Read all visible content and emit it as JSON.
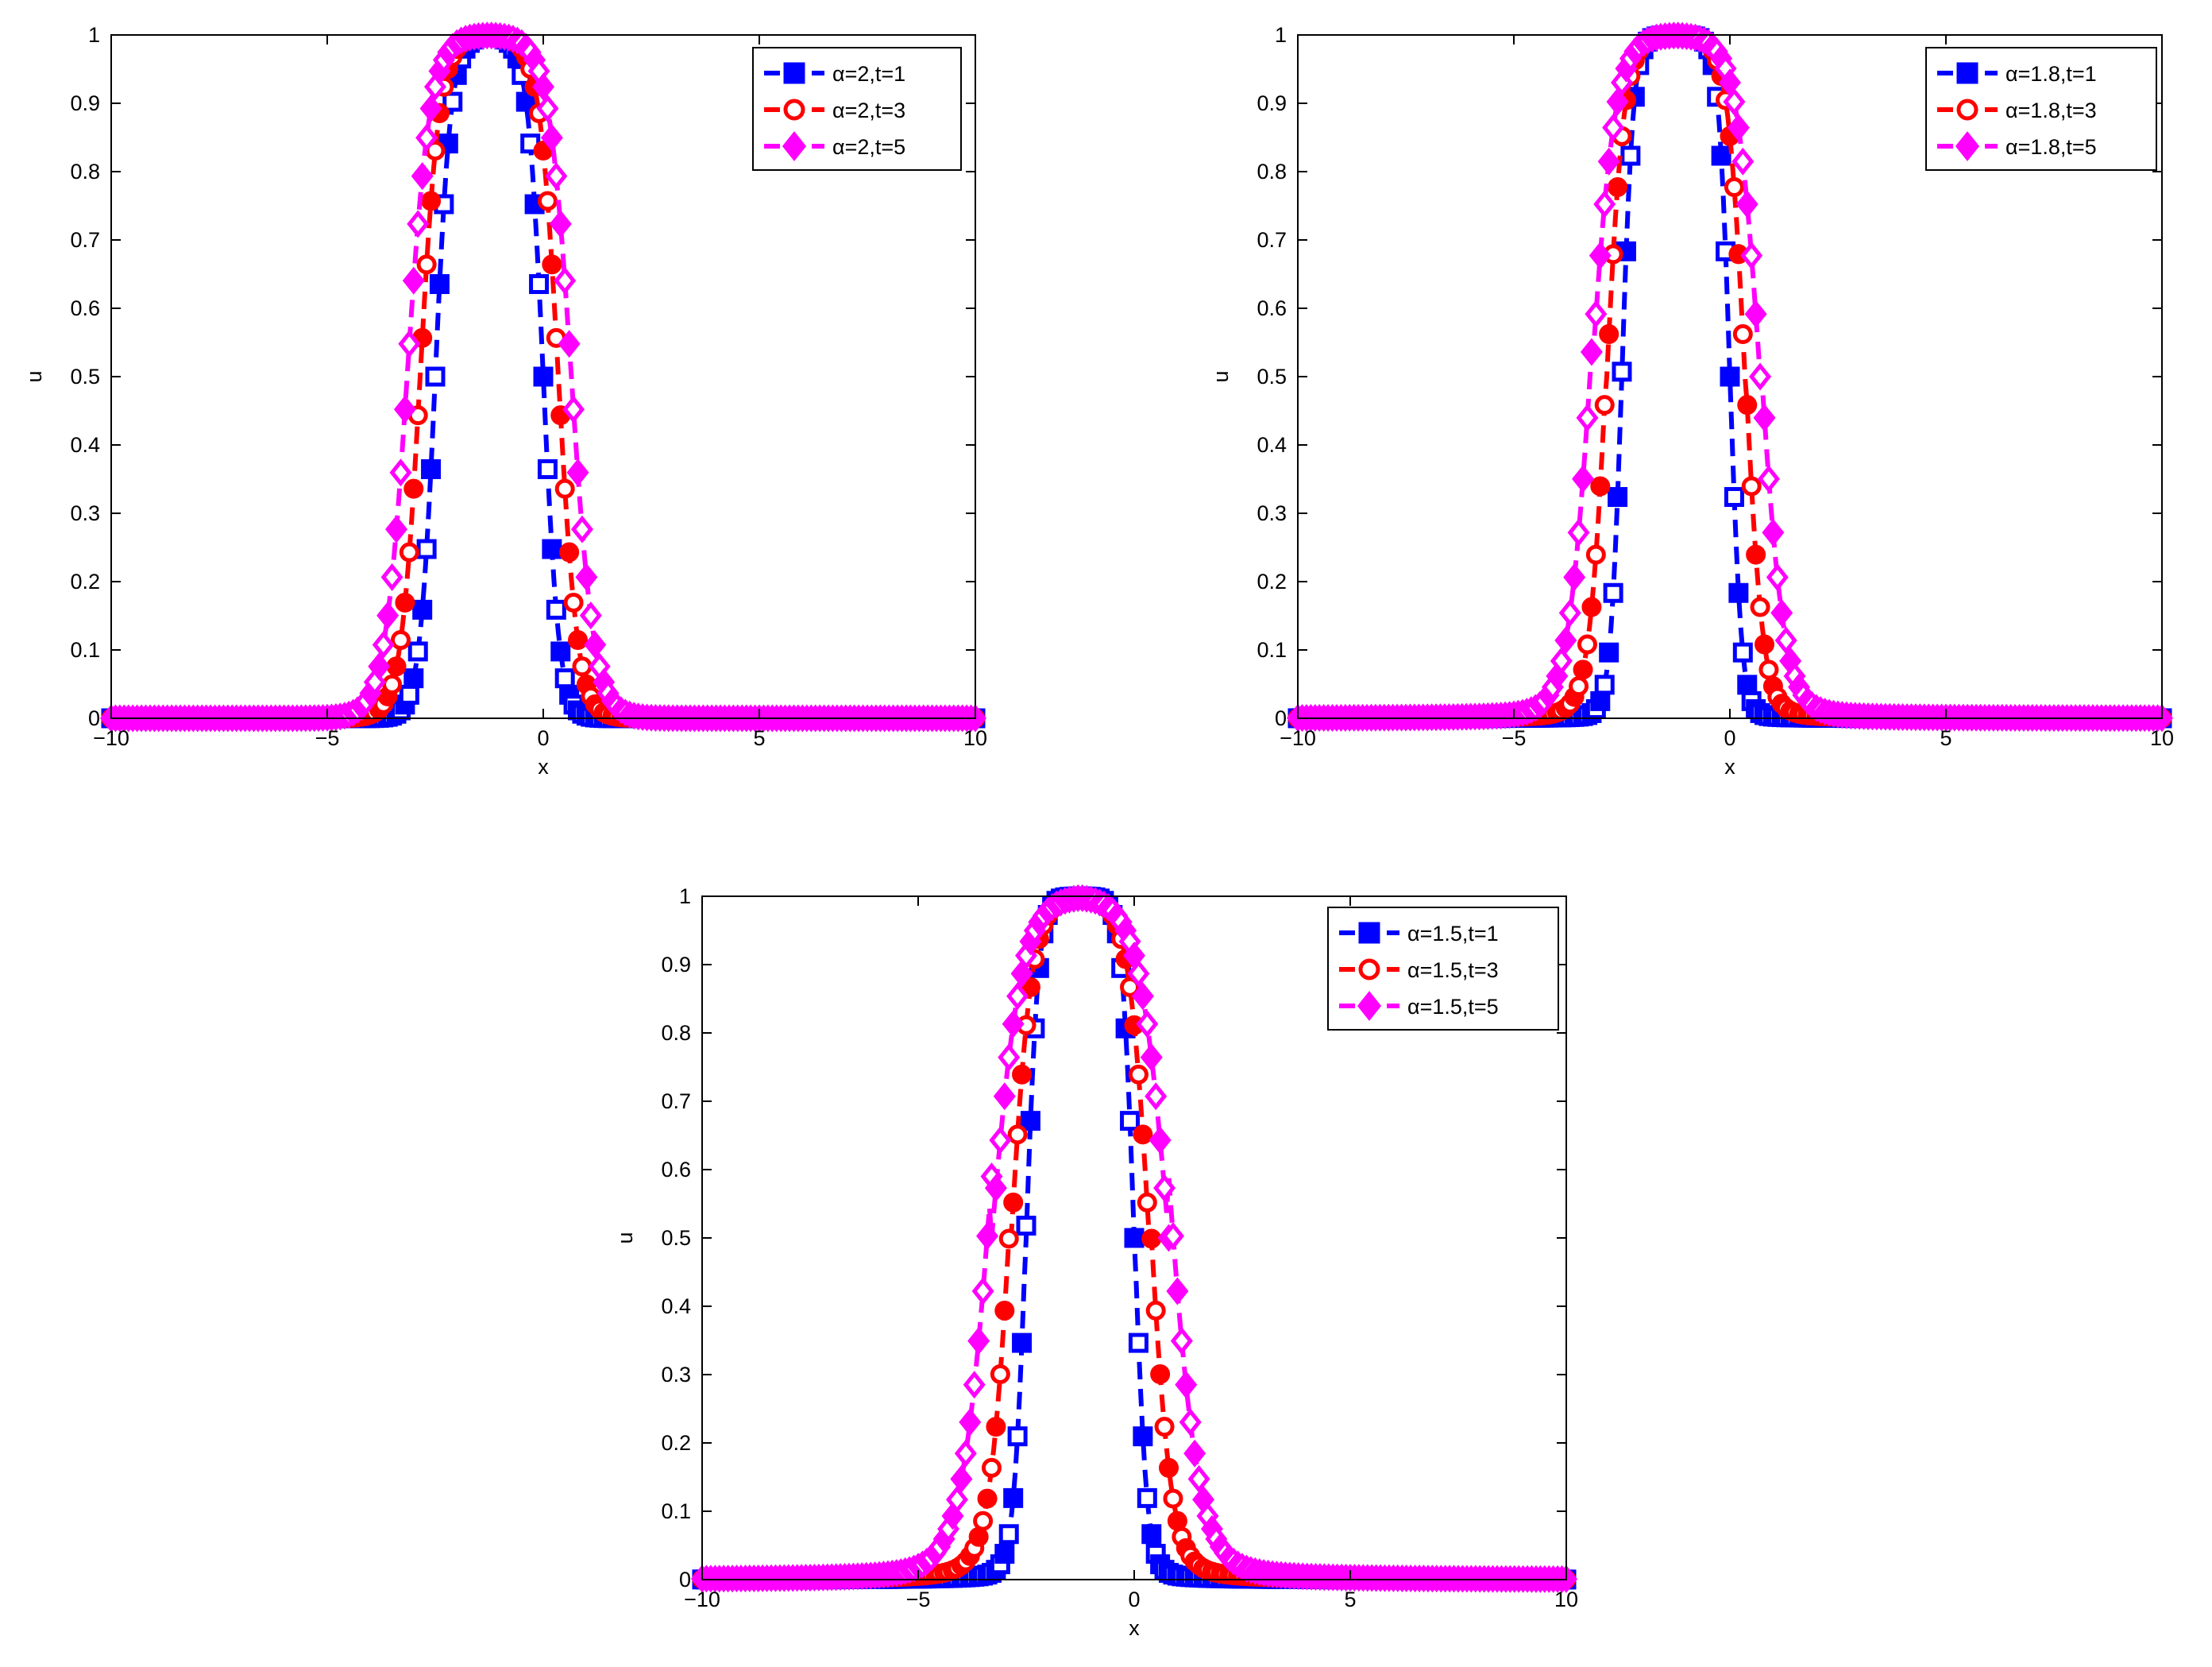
{
  "colors": {
    "blue": "#0000ff",
    "red": "#ff0000",
    "magenta": "#ff00ff",
    "axis": "#000000"
  },
  "chart_data": [
    {
      "type": "line",
      "xlabel": "x",
      "ylabel": "u",
      "xlim": [
        -10,
        10
      ],
      "ylim": [
        0,
        1
      ],
      "xticks": [
        -10,
        -5,
        0,
        5,
        10
      ],
      "yticks": [
        0,
        0.1,
        0.2,
        0.3,
        0.4,
        0.5,
        0.6,
        0.7,
        0.8,
        0.9,
        1
      ],
      "legend_position": "top-right",
      "grid": false,
      "profile": {
        "center": -1.25,
        "half_width": {
          "1": 1.25,
          "3": 1.6,
          "5": 1.9
        },
        "decay": {
          "1": 0.18,
          "3": 0.22,
          "5": 0.26
        },
        "tail": 0
      },
      "series": [
        {
          "name": "α=2,t=1",
          "t": 1,
          "color": "blue",
          "marker": "square"
        },
        {
          "name": "α=2,t=3",
          "t": 3,
          "color": "red",
          "marker": "circle"
        },
        {
          "name": "α=2,t=5",
          "t": 5,
          "color": "magenta",
          "marker": "diamond"
        }
      ]
    },
    {
      "type": "line",
      "xlabel": "x",
      "ylabel": "u",
      "xlim": [
        -10,
        10
      ],
      "ylim": [
        0,
        1
      ],
      "xticks": [
        -10,
        -5,
        0,
        5,
        10
      ],
      "yticks": [
        0,
        0.1,
        0.2,
        0.3,
        0.4,
        0.5,
        0.6,
        0.7,
        0.8,
        0.9,
        1
      ],
      "legend_position": "top-right",
      "grid": false,
      "profile": {
        "center": -1.25,
        "half_width": {
          "1": 1.25,
          "3": 1.6,
          "5": 1.95
        },
        "decay": {
          "1": 0.13,
          "3": 0.2,
          "5": 0.27
        },
        "tail": 0.012
      },
      "series": [
        {
          "name": "α=1.8,t=1",
          "t": 1,
          "color": "blue",
          "marker": "square"
        },
        {
          "name": "α=1.8,t=3",
          "t": 3,
          "color": "red",
          "marker": "circle"
        },
        {
          "name": "α=1.8,t=5",
          "t": 5,
          "color": "magenta",
          "marker": "diamond"
        }
      ]
    },
    {
      "type": "line",
      "xlabel": "x",
      "ylabel": "u",
      "xlim": [
        -10,
        10
      ],
      "ylim": [
        0,
        1
      ],
      "xticks": [
        -10,
        -5,
        0,
        5,
        10
      ],
      "yticks": [
        0,
        0.1,
        0.2,
        0.3,
        0.4,
        0.5,
        0.6,
        0.7,
        0.8,
        0.9,
        1
      ],
      "legend_position": "top-right",
      "grid": false,
      "profile": {
        "center": -1.25,
        "half_width": {
          "1": 1.25,
          "3": 1.6,
          "5": 2.05
        },
        "decay": {
          "1": 0.14,
          "3": 0.24,
          "5": 0.34
        },
        "tail": 0.03
      },
      "series": [
        {
          "name": "α=1.5,t=1",
          "t": 1,
          "color": "blue",
          "marker": "square"
        },
        {
          "name": "α=1.5,t=3",
          "t": 3,
          "color": "red",
          "marker": "circle"
        },
        {
          "name": "α=1.5,t=5",
          "t": 5,
          "color": "magenta",
          "marker": "diamond"
        }
      ]
    }
  ]
}
